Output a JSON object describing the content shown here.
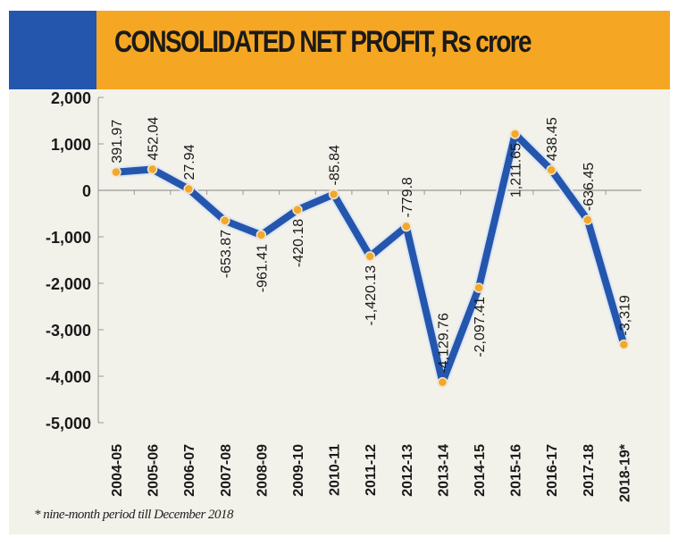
{
  "chart_data": {
    "type": "line",
    "title": "CONSOLIDATED NET PROFIT, Rs crore",
    "categories": [
      "2004-05",
      "2005-06",
      "2006-07",
      "2007-08",
      "2008-09",
      "2009-10",
      "2010-11",
      "2011-12",
      "2012-13",
      "2013-14",
      "2014-15",
      "2015-16",
      "2016-17",
      "2017-18",
      "2018-19*"
    ],
    "values": [
      391.97,
      452.04,
      27.94,
      -653.87,
      -961.41,
      -420.18,
      -85.84,
      -1420.13,
      -779.8,
      -4129.76,
      -2097.41,
      1211.65,
      438.45,
      -636.45,
      -3319
    ],
    "data_labels": [
      "391.97",
      "452.04",
      "27.94",
      "-653.87",
      "-961.41",
      "-420.18",
      "-85.84",
      "-1,420.13",
      "-779.8",
      "-4,129.76",
      "-2,097.41",
      "1,211.65",
      "438.45",
      "-636.45",
      "-3,319"
    ],
    "yticks": [
      2000,
      1000,
      0,
      -1000,
      -2000,
      -3000,
      -4000,
      -5000
    ],
    "ytick_labels": [
      "2,000",
      "1,000",
      "0",
      "-1,000",
      "-2,000",
      "-3,000",
      "-4,000",
      "-5,000"
    ],
    "ylim": [
      -5000,
      2000
    ],
    "grid": false,
    "footnote": "* nine-month period till December 2018",
    "colors": {
      "line": "#2456ad",
      "marker": "#f0a830",
      "header_orange": "#f5a623",
      "header_blue": "#2456ad",
      "background": "#f2f1ea"
    }
  }
}
